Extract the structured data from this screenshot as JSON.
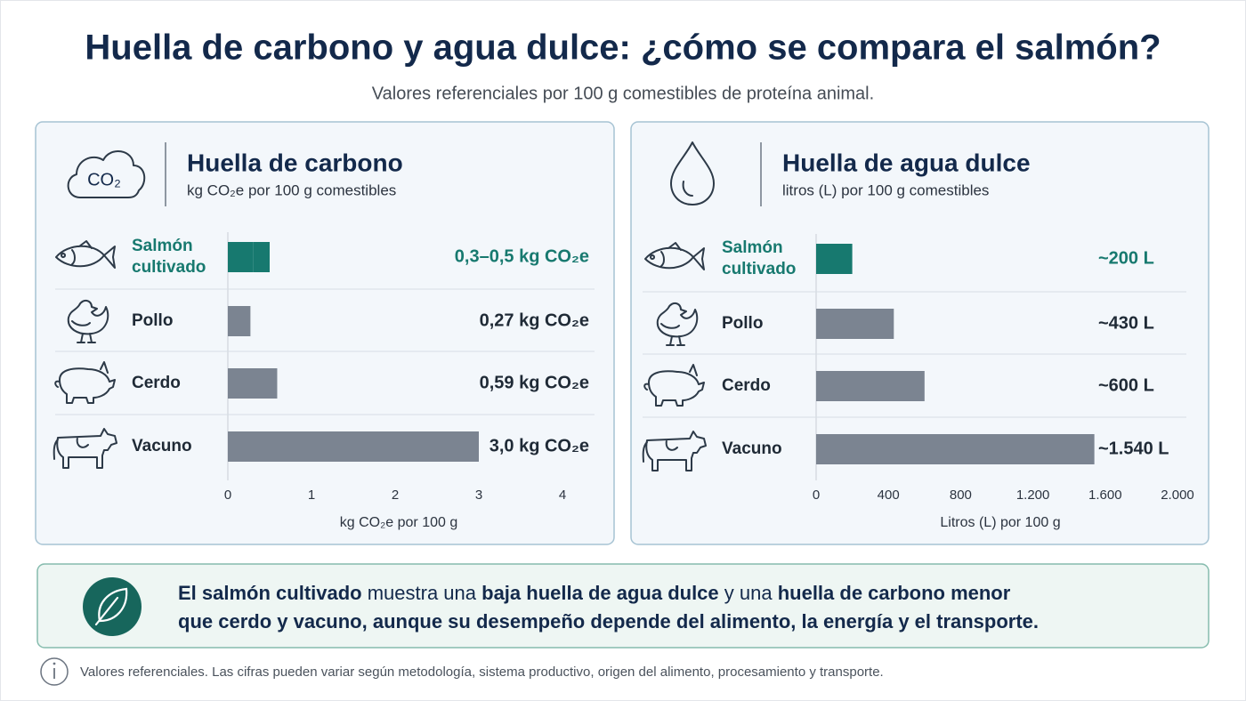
{
  "header": {
    "title": "Huella de carbono y agua dulce: ¿cómo se compara el salmón?",
    "subtitle": "Valores referenciales por 100 g comestibles de proteína animal."
  },
  "chart_data": [
    {
      "type": "bar",
      "orientation": "horizontal",
      "icon_label": "CO₂",
      "title": "Huella de carbono",
      "subtitle": "kg CO₂e por 100 g comestibles",
      "categories": [
        "Salmón cultivado",
        "Pollo",
        "Cerdo",
        "Vacuno"
      ],
      "values": [
        [
          0.3,
          0.5
        ],
        0.27,
        0.59,
        3.0
      ],
      "value_labels": [
        "0,3–0,5 kg CO₂e",
        "0,27 kg CO₂e",
        "0,59 kg CO₂e",
        "3,0 kg CO₂e"
      ],
      "colors": [
        "#17796f",
        "#7b8491",
        "#7b8491",
        "#7b8491"
      ],
      "xlim": [
        0,
        4
      ],
      "xticks": [
        0,
        1,
        2,
        3,
        4
      ],
      "xlabel": "kg CO₂e por 100 g",
      "grid": false
    },
    {
      "type": "bar",
      "orientation": "horizontal",
      "title": "Huella de agua dulce",
      "subtitle": "litros (L) por 100 g comestibles",
      "categories": [
        "Salmón cultivado",
        "Pollo",
        "Cerdo",
        "Vacuno"
      ],
      "values": [
        200,
        430,
        600,
        1540
      ],
      "value_labels": [
        "~200 L",
        "~430 L",
        "~600 L",
        "~1.540 L"
      ],
      "colors": [
        "#17796f",
        "#7b8491",
        "#7b8491",
        "#7b8491"
      ],
      "xlim": [
        0,
        2000
      ],
      "xticks": [
        0,
        400,
        800,
        {
          "value": 1200,
          "label": "1.200"
        },
        {
          "value": 1600,
          "label": "1.600"
        },
        {
          "value": 2000,
          "label": "2.000"
        }
      ],
      "xlabel": "Litros (L) por 100 g",
      "grid": false
    }
  ],
  "callout": {
    "lines": [
      [
        {
          "text": "El salmón cultivado",
          "bold": true
        },
        {
          "text": " muestra una ",
          "bold": false
        },
        {
          "text": "baja huella de agua dulce",
          "bold": true
        },
        {
          "text": " y una ",
          "bold": false
        },
        {
          "text": "huella de carbono menor",
          "bold": true
        }
      ],
      [
        {
          "text": "que cerdo y vacuno, aunque su desempeño depende del alimento, la energía y el transporte.",
          "bold": true
        }
      ]
    ]
  },
  "note": "Valores referenciales. Las cifras pueden variar según metodología, sistema productivo, origen del alimento, procesamiento y transporte."
}
